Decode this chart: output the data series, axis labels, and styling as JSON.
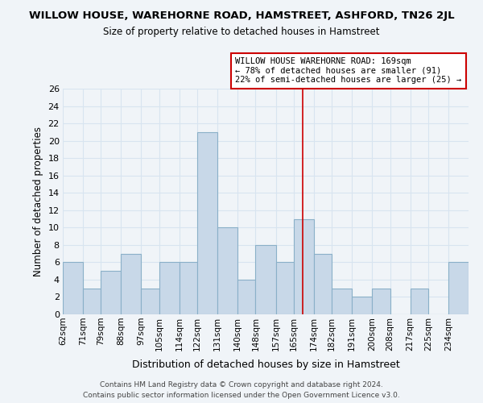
{
  "title": "WILLOW HOUSE, WAREHORNE ROAD, HAMSTREET, ASHFORD, TN26 2JL",
  "subtitle": "Size of property relative to detached houses in Hamstreet",
  "xlabel": "Distribution of detached houses by size in Hamstreet",
  "ylabel": "Number of detached properties",
  "bin_labels": [
    "62sqm",
    "71sqm",
    "79sqm",
    "88sqm",
    "97sqm",
    "105sqm",
    "114sqm",
    "122sqm",
    "131sqm",
    "140sqm",
    "148sqm",
    "157sqm",
    "165sqm",
    "174sqm",
    "182sqm",
    "191sqm",
    "200sqm",
    "208sqm",
    "217sqm",
    "225sqm",
    "234sqm"
  ],
  "bin_edges": [
    62,
    71,
    79,
    88,
    97,
    105,
    114,
    122,
    131,
    140,
    148,
    157,
    165,
    174,
    182,
    191,
    200,
    208,
    217,
    225,
    234,
    243
  ],
  "bar_heights": [
    6,
    3,
    5,
    7,
    3,
    6,
    6,
    21,
    10,
    4,
    8,
    6,
    11,
    7,
    3,
    2,
    3,
    0,
    3,
    0,
    6
  ],
  "bar_color": "#c8d8e8",
  "bar_edgecolor": "#8ab0c8",
  "property_line_x": 169,
  "property_line_color": "#cc0000",
  "annotation_text": "WILLOW HOUSE WAREHORNE ROAD: 169sqm\n← 78% of detached houses are smaller (91)\n22% of semi-detached houses are larger (25) →",
  "ylim": [
    0,
    26
  ],
  "yticks": [
    0,
    2,
    4,
    6,
    8,
    10,
    12,
    14,
    16,
    18,
    20,
    22,
    24,
    26
  ],
  "footer_line1": "Contains HM Land Registry data © Crown copyright and database right 2024.",
  "footer_line2": "Contains public sector information licensed under the Open Government Licence v3.0.",
  "background_color": "#f0f4f8",
  "grid_color": "#d8e4f0"
}
